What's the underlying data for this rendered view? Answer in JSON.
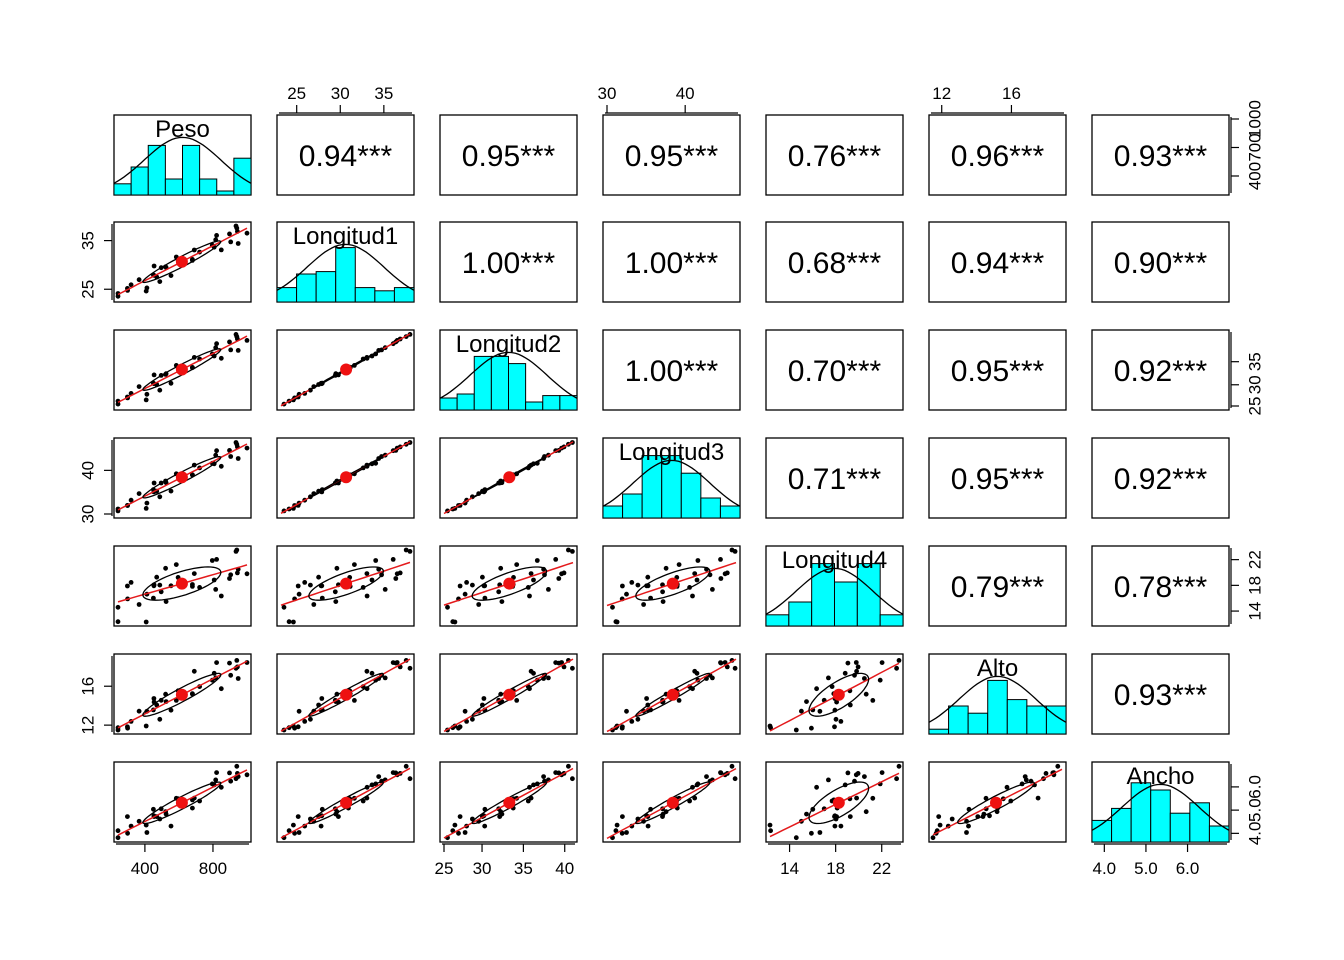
{
  "chart_data": {
    "type": "scatter-matrix",
    "title": "",
    "variables": [
      "Peso",
      "Longitud1",
      "Longitud2",
      "Longitud3",
      "Longitud4",
      "Alto",
      "Ancho"
    ],
    "ranges": {
      "Peso": [
        242,
        1000
      ],
      "Longitud1": [
        23.2,
        38.0
      ],
      "Longitud2": [
        25.4,
        41.0
      ],
      "Longitud3": [
        30.0,
        46.5
      ],
      "Longitud4": [
        12.3,
        23.5
      ],
      "Alto": [
        11.5,
        18.9
      ],
      "Ancho": [
        3.8,
        6.9
      ]
    },
    "means": {
      "Peso": 617,
      "Longitud1": 30.3,
      "Longitud2": 33.1,
      "Longitud3": 38.4,
      "Longitud4": 18.7,
      "Alto": 15.2,
      "Ancho": 5.43
    },
    "axis_ticks": {
      "Peso": [
        "400",
        "800"
      ],
      "Peso_right": [
        "400",
        "700",
        "1000"
      ],
      "Longitud1": [
        "25",
        "30",
        "35"
      ],
      "Longitud1_left": [
        "25",
        "35"
      ],
      "Longitud2": [
        "25",
        "30",
        "35",
        "40"
      ],
      "Longitud2_right": [
        "25",
        "30",
        "35"
      ],
      "Longitud3": [
        "30",
        "40"
      ],
      "Longitud3_left": [
        "30",
        "40"
      ],
      "Longitud4": [
        "14",
        "18",
        "22"
      ],
      "Longitud4_right": [
        "14",
        "18",
        "22"
      ],
      "Alto": [
        "12",
        "16"
      ],
      "Alto_left": [
        "12",
        "16"
      ],
      "Ancho": [
        "4.0",
        "5.0",
        "6.0"
      ],
      "Ancho_right": [
        "4.0",
        "5.0",
        "6.0"
      ]
    },
    "correlations": [
      {
        "row": "Peso",
        "col": "Longitud1",
        "label": "0.94***"
      },
      {
        "row": "Peso",
        "col": "Longitud2",
        "label": "0.95***"
      },
      {
        "row": "Peso",
        "col": "Longitud3",
        "label": "0.95***"
      },
      {
        "row": "Peso",
        "col": "Longitud4",
        "label": "0.76***"
      },
      {
        "row": "Peso",
        "col": "Alto",
        "label": "0.96***"
      },
      {
        "row": "Peso",
        "col": "Ancho",
        "label": "0.93***"
      },
      {
        "row": "Longitud1",
        "col": "Longitud2",
        "label": "1.00***"
      },
      {
        "row": "Longitud1",
        "col": "Longitud3",
        "label": "1.00***"
      },
      {
        "row": "Longitud1",
        "col": "Longitud4",
        "label": "0.68***"
      },
      {
        "row": "Longitud1",
        "col": "Alto",
        "label": "0.94***"
      },
      {
        "row": "Longitud1",
        "col": "Ancho",
        "label": "0.90***"
      },
      {
        "row": "Longitud2",
        "col": "Longitud3",
        "label": "1.00***"
      },
      {
        "row": "Longitud2",
        "col": "Longitud4",
        "label": "0.70***"
      },
      {
        "row": "Longitud2",
        "col": "Alto",
        "label": "0.95***"
      },
      {
        "row": "Longitud2",
        "col": "Ancho",
        "label": "0.92***"
      },
      {
        "row": "Longitud3",
        "col": "Longitud4",
        "label": "0.71***"
      },
      {
        "row": "Longitud3",
        "col": "Alto",
        "label": "0.95***"
      },
      {
        "row": "Longitud3",
        "col": "Ancho",
        "label": "0.92***"
      },
      {
        "row": "Longitud4",
        "col": "Alto",
        "label": "0.79***"
      },
      {
        "row": "Longitud4",
        "col": "Ancho",
        "label": "0.78***"
      },
      {
        "row": "Alto",
        "col": "Ancho",
        "label": "0.93***"
      }
    ],
    "histograms": {
      "Peso": [
        0.14,
        0.35,
        0.62,
        0.2,
        0.62,
        0.2,
        0.05,
        0.46
      ],
      "Longitud1": [
        0.18,
        0.35,
        0.38,
        0.68,
        0.18,
        0.14,
        0.18
      ],
      "Longitud2": [
        0.15,
        0.2,
        0.67,
        0.67,
        0.58,
        0.1,
        0.18,
        0.18
      ],
      "Longitud3": [
        0.15,
        0.3,
        0.78,
        0.78,
        0.56,
        0.25,
        0.15
      ],
      "Longitud4": [
        0.14,
        0.3,
        0.78,
        0.55,
        0.78,
        0.14
      ],
      "Alto": [
        0.06,
        0.35,
        0.26,
        0.67,
        0.43,
        0.35,
        0.35
      ],
      "Ancho": [
        0.27,
        0.42,
        0.74,
        0.65,
        0.36,
        0.49,
        0.2
      ]
    },
    "hist_color": "#00ffff",
    "line_color": "#e41a1c"
  }
}
